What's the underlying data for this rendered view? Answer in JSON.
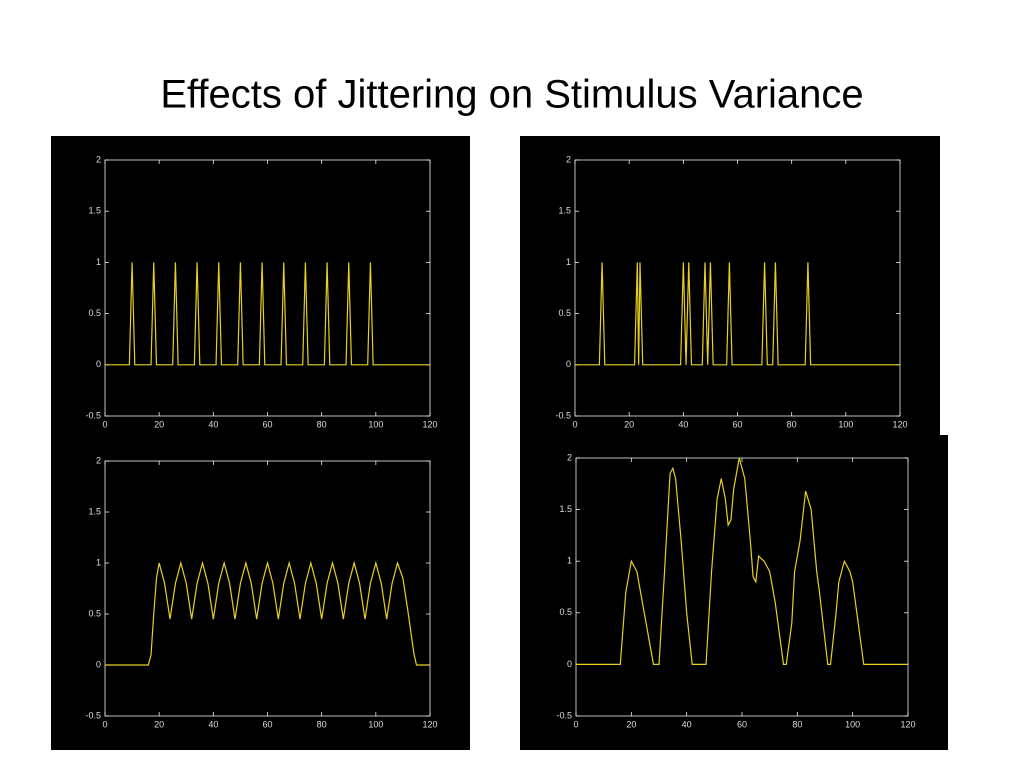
{
  "title": "Effects of Jittering on Stimulus Variance",
  "chart_data": [
    {
      "type": "line",
      "color": "#e8d020",
      "x": [
        0,
        9,
        10,
        11,
        17,
        18,
        19,
        25,
        26,
        27,
        33,
        34,
        35,
        41,
        42,
        43,
        49,
        50,
        51,
        57,
        58,
        59,
        65,
        66,
        67,
        73,
        74,
        75,
        81,
        82,
        83,
        89,
        90,
        91,
        97,
        98,
        99,
        120
      ],
      "values": [
        0,
        0,
        1,
        0,
        0,
        1,
        0,
        0,
        1,
        0,
        0,
        1,
        0,
        0,
        1,
        0,
        0,
        1,
        0,
        0,
        1,
        0,
        0,
        1,
        0,
        0,
        1,
        0,
        0,
        1,
        0,
        0,
        1,
        0,
        0,
        1,
        0,
        0
      ],
      "xlim": [
        0,
        120
      ],
      "ylim": [
        -0.5,
        2
      ],
      "xticks": [
        0,
        20,
        40,
        60,
        80,
        100,
        120
      ],
      "yticks": [
        -0.5,
        0,
        0.5,
        1,
        1.5,
        2
      ]
    },
    {
      "type": "line",
      "color": "#e8d020",
      "x": [
        0,
        9,
        10,
        11,
        22,
        23,
        23.5,
        24,
        25,
        39,
        40,
        41,
        42,
        43,
        47,
        48,
        49,
        50,
        51,
        56,
        57,
        58,
        69,
        70,
        71,
        73,
        74,
        75,
        85,
        86,
        87,
        120
      ],
      "values": [
        0,
        0,
        1,
        0,
        0,
        1,
        0,
        1,
        0,
        0,
        1,
        0,
        1,
        0,
        0,
        1,
        0,
        1,
        0,
        0,
        1,
        0,
        0,
        1,
        0,
        0,
        1,
        0,
        0,
        1,
        0,
        0
      ],
      "xlim": [
        0,
        120
      ],
      "ylim": [
        -0.5,
        2
      ],
      "xticks": [
        0,
        20,
        40,
        60,
        80,
        100,
        120
      ],
      "yticks": [
        -0.5,
        0,
        0.5,
        1,
        1.5,
        2
      ]
    },
    {
      "type": "line",
      "color": "#e8d020",
      "x": [
        0,
        16,
        17,
        18,
        19,
        20,
        22,
        24,
        26,
        28,
        30,
        32,
        34,
        36,
        38,
        40,
        42,
        44,
        46,
        48,
        50,
        52,
        54,
        56,
        58,
        60,
        62,
        64,
        66,
        68,
        70,
        72,
        74,
        76,
        78,
        80,
        82,
        84,
        86,
        88,
        90,
        92,
        94,
        96,
        98,
        100,
        102,
        104,
        106,
        108,
        110,
        112,
        114,
        115,
        120
      ],
      "values": [
        0,
        0,
        0.1,
        0.5,
        0.85,
        1,
        0.8,
        0.45,
        0.8,
        1,
        0.8,
        0.45,
        0.8,
        1,
        0.8,
        0.45,
        0.8,
        1,
        0.8,
        0.45,
        0.8,
        1,
        0.8,
        0.45,
        0.8,
        1,
        0.8,
        0.45,
        0.8,
        1,
        0.8,
        0.45,
        0.8,
        1,
        0.8,
        0.45,
        0.8,
        1,
        0.8,
        0.45,
        0.8,
        1,
        0.8,
        0.45,
        0.8,
        1,
        0.8,
        0.45,
        0.8,
        1,
        0.85,
        0.5,
        0.12,
        0,
        0
      ],
      "xlim": [
        0,
        120
      ],
      "ylim": [
        -0.5,
        2
      ],
      "xticks": [
        0,
        20,
        40,
        60,
        80,
        100,
        120
      ],
      "yticks": [
        -0.5,
        0,
        0.5,
        1,
        1.5,
        2
      ]
    },
    {
      "type": "line",
      "color": "#e8d020",
      "x": [
        0,
        16,
        18,
        20,
        22,
        24,
        26,
        28,
        30,
        32,
        34,
        35,
        36,
        38,
        40,
        42,
        47,
        49,
        51,
        52.5,
        54,
        55,
        56,
        57,
        59,
        61,
        63,
        64,
        65,
        66,
        68,
        70,
        72,
        75,
        76,
        78,
        79,
        81,
        83,
        85,
        87,
        88,
        91,
        92,
        94,
        95,
        97,
        99,
        100,
        102,
        104,
        120
      ],
      "values": [
        0,
        0,
        0.7,
        1,
        0.9,
        0.6,
        0.3,
        0,
        0,
        0.9,
        1.85,
        1.9,
        1.8,
        1.2,
        0.5,
        0,
        0,
        0.9,
        1.6,
        1.8,
        1.6,
        1.35,
        1.4,
        1.7,
        2,
        1.8,
        1.2,
        0.85,
        0.8,
        1.05,
        1,
        0.9,
        0.6,
        0,
        0,
        0.4,
        0.9,
        1.2,
        1.68,
        1.5,
        0.9,
        0.7,
        0,
        0,
        0.5,
        0.8,
        1,
        0.9,
        0.8,
        0.4,
        0,
        0
      ],
      "xlim": [
        0,
        120
      ],
      "ylim": [
        -0.5,
        2
      ],
      "xticks": [
        0,
        20,
        40,
        60,
        80,
        100,
        120
      ],
      "yticks": [
        -0.5,
        0,
        0.5,
        1,
        1.5,
        2
      ]
    }
  ]
}
